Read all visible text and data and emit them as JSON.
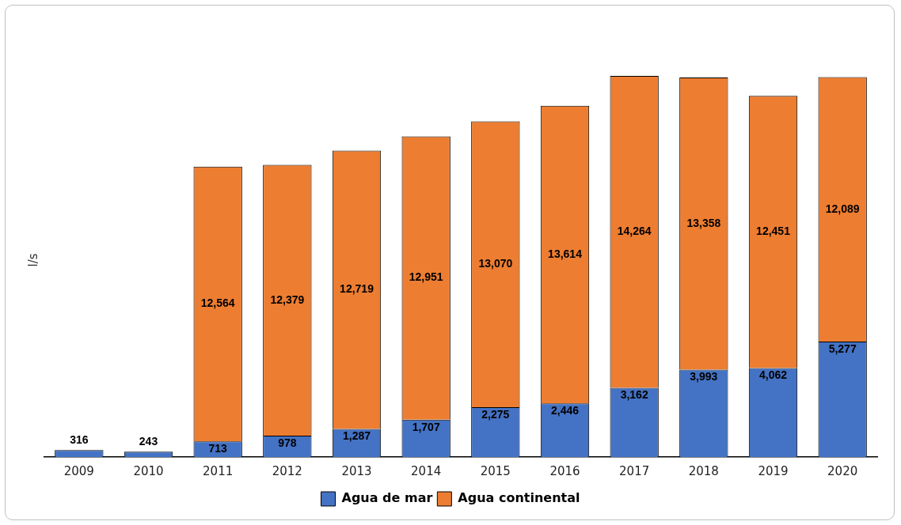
{
  "chart_data": {
    "type": "bar",
    "stacked": true,
    "ylabel": "l/s",
    "legend": "bottom",
    "grid": false,
    "categories": [
      "2009",
      "2010",
      "2011",
      "2012",
      "2013",
      "2014",
      "2015",
      "2016",
      "2017",
      "2018",
      "2019",
      "2020"
    ],
    "series": [
      {
        "name": "Agua de mar",
        "color": "#4472c4",
        "values": [
          316,
          243,
          713,
          978,
          1287,
          1707,
          2275,
          2446,
          3162,
          3993,
          4062,
          5277
        ],
        "value_labels": [
          "316",
          "243",
          "713",
          "978",
          "1,287",
          "1,707",
          "2,275",
          "2,446",
          "3,162",
          "3,993",
          "4,062",
          "5,277"
        ]
      },
      {
        "name": "Agua continental",
        "color": "#ed7d31",
        "values": [
          null,
          null,
          12564,
          12379,
          12719,
          12951,
          13070,
          13614,
          14264,
          13358,
          12451,
          12089
        ],
        "value_labels": [
          null,
          null,
          "12,564",
          "12,379",
          "12,719",
          "12,951",
          "13,070",
          "13,614",
          "14,264",
          "13,358",
          "12,451",
          "12,089"
        ]
      }
    ]
  }
}
